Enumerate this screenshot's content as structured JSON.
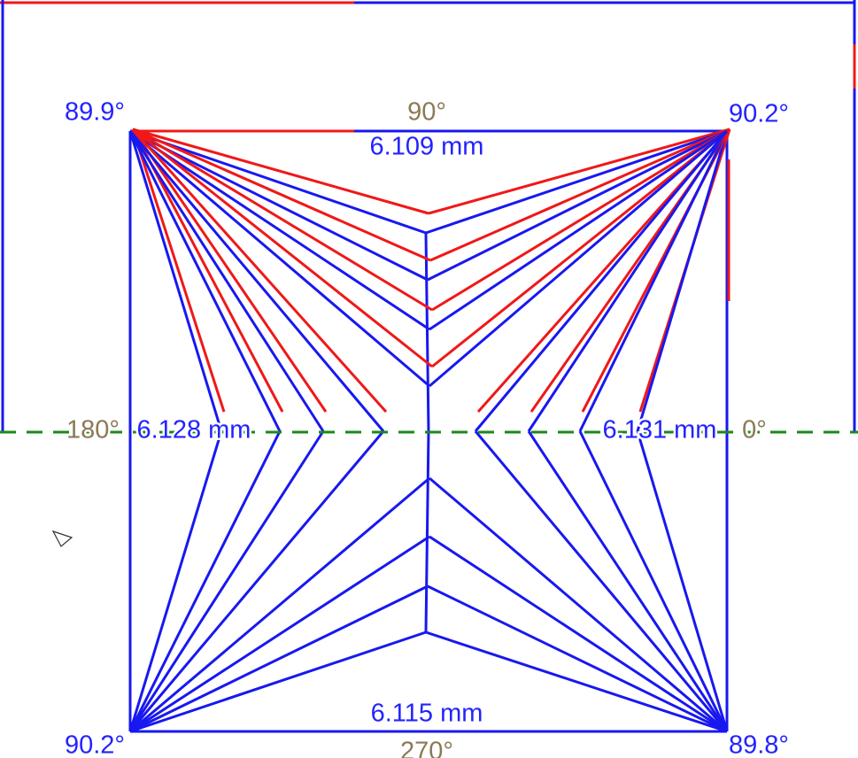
{
  "corner_angles": {
    "top_left": "89.9°",
    "top_right": "90.2°",
    "bottom_left": "90.2°",
    "bottom_right": "89.8°"
  },
  "side_lengths": {
    "top": "6.109 mm",
    "left": "6.128 mm",
    "right": "6.131 mm",
    "bottom": "6.115 mm"
  },
  "axis_angles": {
    "top": "90°",
    "left": "180°",
    "right": "0°",
    "bottom": "270°"
  }
}
